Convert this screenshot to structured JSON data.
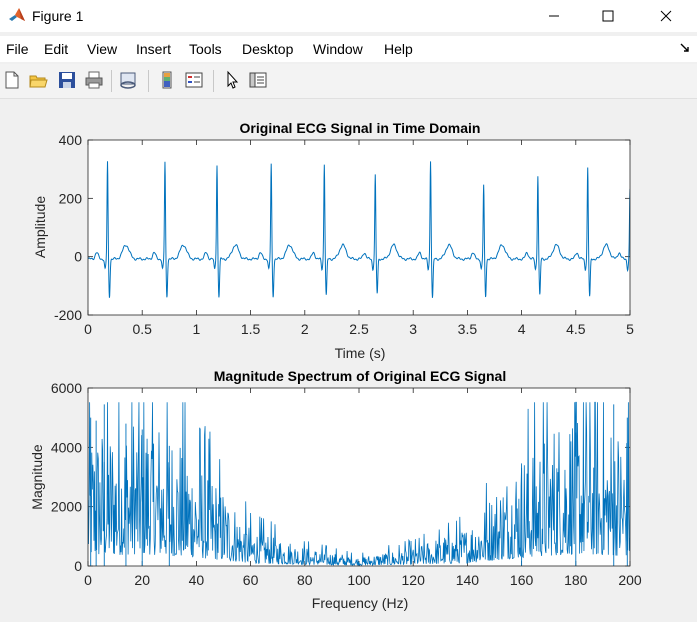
{
  "window": {
    "title": "Figure 1",
    "icon": "matlab-logo-icon",
    "controls": [
      "minimize-icon",
      "maximize-icon",
      "close-icon"
    ]
  },
  "menu": {
    "items": [
      "File",
      "Edit",
      "View",
      "Insert",
      "Tools",
      "Desktop",
      "Window",
      "Help"
    ]
  },
  "toolbar": {
    "tools": [
      "new-figure-icon",
      "open-file-icon",
      "save-icon",
      "print-icon",
      "link-plot-icon",
      "insert-colorbar-icon",
      "insert-legend-icon",
      "edit-plot-icon",
      "property-inspector-icon"
    ]
  },
  "colors": {
    "line": "#0072bd",
    "axes_bg": "#ffffff",
    "figure_bg": "#f0f0f0"
  },
  "chart_data": [
    {
      "type": "line",
      "title": "Original ECG Signal in Time Domain",
      "xlabel": "Time (s)",
      "ylabel": "Amplitude",
      "xlim": [
        0,
        5
      ],
      "ylim": [
        -200,
        400
      ],
      "xticks": [
        "0",
        "0.5",
        "1",
        "1.5",
        "2",
        "2.5",
        "3",
        "3.5",
        "4",
        "4.5",
        "5"
      ],
      "yticks": [
        "-200",
        "0",
        "200",
        "400"
      ],
      "r_peaks": {
        "times": [
          0.18,
          0.71,
          1.19,
          1.69,
          2.18,
          2.65,
          3.16,
          3.65,
          4.15,
          4.61,
          5.0
        ],
        "amplitudes": [
          325,
          325,
          315,
          318,
          318,
          280,
          330,
          245,
          280,
          305,
          230
        ],
        "s_troughs": [
          -130,
          -130,
          -130,
          -130,
          -125,
          -120,
          -135,
          -130,
          -125,
          -130,
          -40
        ]
      },
      "p_wave_amplitude": 22,
      "t_wave_amplitude": 48,
      "baseline": -8
    },
    {
      "type": "line",
      "title": "Magnitude Spectrum of Original ECG Signal",
      "xlabel": "Frequency (Hz)",
      "ylabel": "Magnitude",
      "xlim": [
        0,
        200
      ],
      "ylim": [
        0,
        6000
      ],
      "xticks": [
        "0",
        "20",
        "40",
        "60",
        "80",
        "100",
        "120",
        "140",
        "160",
        "180",
        "200"
      ],
      "yticks": [
        "0",
        "2000",
        "4000",
        "6000"
      ],
      "notable_peaks": [
        {
          "x": 1,
          "y": 5000
        },
        {
          "x": 3,
          "y": 4900
        },
        {
          "x": 6,
          "y": 5450
        },
        {
          "x": 14,
          "y": 4800
        },
        {
          "x": 20,
          "y": 4600
        },
        {
          "x": 30,
          "y": 4050
        },
        {
          "x": 160,
          "y": 3300
        },
        {
          "x": 180,
          "y": 4500
        },
        {
          "x": 194,
          "y": 5450
        },
        {
          "x": 199,
          "y": 5000
        }
      ],
      "envelope": {
        "x": [
          0,
          20,
          40,
          60,
          80,
          100,
          120,
          140,
          160,
          180,
          200
        ],
        "y": [
          2200,
          2700,
          1900,
          650,
          320,
          150,
          320,
          650,
          1900,
          2700,
          2200
        ]
      }
    }
  ]
}
